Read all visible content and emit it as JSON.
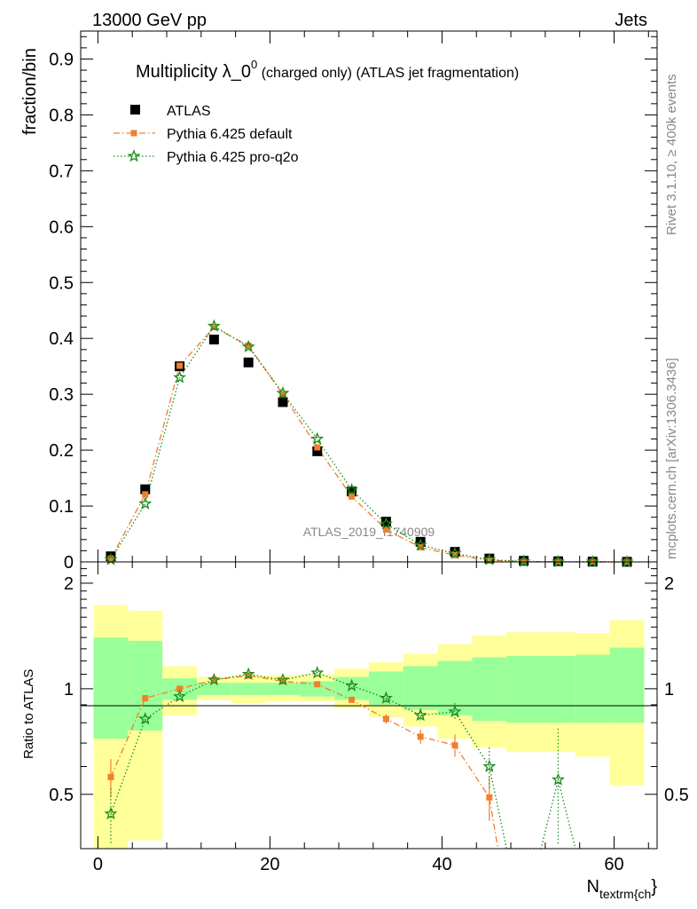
{
  "header": {
    "left": "13000 GeV pp",
    "right": "Jets"
  },
  "side_labels": {
    "rivet": "Rivet 3.1.10, ≥ 400k events",
    "mcplots": "mcplots.cern.ch [arXiv:1306.3436]"
  },
  "watermark": "ATLAS_2019_I1740909",
  "chart_data": [
    {
      "type": "scatter",
      "title_main": "Multiplicity λ_0",
      "title_sup": "0",
      "title_rest": " (charged only) (ATLAS jet fragmentation)",
      "ylabel": "fraction/bin",
      "xlim": [
        -2,
        65
      ],
      "ylim": [
        0,
        0.95
      ],
      "yticks": [
        0,
        0.1,
        0.2,
        0.3,
        0.4,
        0.5,
        0.6,
        0.7,
        0.8,
        0.9
      ],
      "ytick_labels": [
        "0",
        "0.1",
        "0.2",
        "0.3",
        "0.4",
        "0.5",
        "0.6",
        "0.7",
        "0.8",
        "0.9"
      ],
      "x": [
        1.5,
        5.5,
        9.5,
        13.5,
        17.5,
        21.5,
        25.5,
        29.5,
        33.5,
        37.5,
        41.5,
        45.5,
        49.5,
        53.5,
        57.5,
        61.5
      ],
      "series": [
        {
          "name": "ATLAS",
          "color": "#000000",
          "marker": "square",
          "values": [
            0.01,
            0.13,
            0.35,
            0.398,
            0.357,
            0.286,
            0.198,
            0.126,
            0.072,
            0.036,
            0.018,
            0.006,
            0.002,
            0.0012,
            0.0005,
            0.0002
          ]
        },
        {
          "name": "Pythia 6.425 default",
          "color": "#f07f2d",
          "marker": "square-small",
          "line": "dashdot",
          "values": [
            0.006,
            0.121,
            0.351,
            0.42,
            0.387,
            0.3,
            0.205,
            0.117,
            0.058,
            0.026,
            0.012,
            0.003,
            0.0005,
            0.0002,
            0.0001,
            0.0
          ]
        },
        {
          "name": "Pythia 6.425 pro-q2o",
          "color": "#1a8a1a",
          "marker": "star",
          "line": "dotted",
          "values": [
            0.004,
            0.104,
            0.33,
            0.422,
            0.385,
            0.302,
            0.22,
            0.129,
            0.068,
            0.03,
            0.015,
            0.004,
            0.0008,
            0.0003,
            0.0001,
            0.0
          ]
        }
      ]
    },
    {
      "type": "scatter",
      "ylabel": "Ratio to ATLAS",
      "xlabel_main": "N",
      "xlabel_sub": "textrm{ch",
      "xlabel_end": "}",
      "xlim": [
        -2,
        65
      ],
      "ylim": [
        0.35,
        2.3
      ],
      "yticks": [
        0.5,
        1,
        2
      ],
      "ytick_labels": [
        "0.5",
        "1",
        "2"
      ],
      "xticks": [
        0,
        20,
        40,
        60
      ],
      "xtick_labels": [
        "0",
        "20",
        "40",
        "60"
      ],
      "bands": {
        "x_edges": [
          -0.5,
          3.5,
          7.5,
          11.5,
          15.5,
          19.5,
          23.5,
          27.5,
          31.5,
          35.5,
          39.5,
          43.5,
          47.5,
          51.5,
          55.5,
          59.5,
          63.5
        ],
        "inner_color": "#99ff99",
        "outer_color": "#ffff99",
        "inner_lo": [
          0.72,
          0.76,
          0.93,
          0.96,
          0.96,
          0.96,
          0.95,
          0.93,
          0.9,
          0.87,
          0.84,
          0.81,
          0.8,
          0.8,
          0.8,
          0.8
        ],
        "inner_hi": [
          1.4,
          1.37,
          1.07,
          1.04,
          1.04,
          1.04,
          1.05,
          1.08,
          1.12,
          1.16,
          1.2,
          1.23,
          1.24,
          1.24,
          1.25,
          1.31
        ],
        "outer_lo": [
          0.35,
          0.37,
          0.84,
          0.93,
          0.91,
          0.92,
          0.92,
          0.88,
          0.83,
          0.78,
          0.72,
          0.68,
          0.66,
          0.66,
          0.64,
          0.53
        ],
        "outer_hi": [
          1.73,
          1.67,
          1.16,
          1.08,
          1.09,
          1.09,
          1.1,
          1.14,
          1.19,
          1.26,
          1.34,
          1.42,
          1.45,
          1.45,
          1.44,
          1.57
        ]
      },
      "series": [
        {
          "name": "Pythia 6.425 default",
          "color": "#f07f2d",
          "x": [
            1.5,
            5.5,
            9.5,
            13.5,
            17.5,
            21.5,
            25.5,
            29.5,
            33.5,
            37.5,
            41.5,
            45.5,
            46.5
          ],
          "values": [
            0.56,
            0.94,
            1.0,
            1.06,
            1.09,
            1.05,
            1.03,
            0.93,
            0.82,
            0.73,
            0.69,
            0.49,
            0.34
          ],
          "errors": [
            0.07,
            0.02,
            0.01,
            0.01,
            0.01,
            0.01,
            0.01,
            0.015,
            0.025,
            0.035,
            0.05,
            0.07,
            0.0
          ],
          "markers": 12
        },
        {
          "name": "Pythia 6.425 pro-q2o",
          "color": "#1a8a1a",
          "x": [
            1.5,
            5.5,
            9.5,
            13.5,
            17.5,
            21.5,
            25.5,
            29.5,
            33.5,
            37.5,
            41.5,
            45.5,
            47.5,
            51.5,
            53.5,
            55.5
          ],
          "values": [
            0.44,
            0.82,
            0.95,
            1.06,
            1.1,
            1.06,
            1.11,
            1.02,
            0.94,
            0.84,
            0.86,
            0.6,
            0.34,
            0.34,
            0.55,
            0.34
          ],
          "errors": [
            0.08,
            0.02,
            0.01,
            0.01,
            0.01,
            0.01,
            0.01,
            0.015,
            0.025,
            0.04,
            0.05,
            0.08,
            0.0,
            0.0,
            0.22,
            0.0
          ],
          "markers": 12,
          "extra_markers_x": [
            53.5
          ]
        }
      ]
    }
  ]
}
